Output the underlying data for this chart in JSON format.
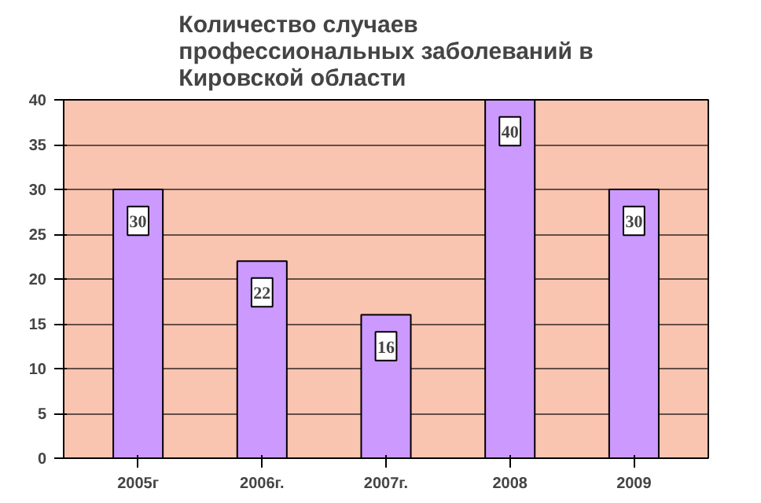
{
  "chart_data": {
    "type": "bar",
    "title": "Количество случаев\nпрофессиональных заболеваний в\nКировской области",
    "categories": [
      "2005г",
      "2006г.",
      "2007г.",
      "2008",
      "2009"
    ],
    "values": [
      30,
      22,
      16,
      40,
      30
    ],
    "color": "#cc99ff",
    "ylim": [
      0,
      40
    ],
    "yticks": [
      0,
      5,
      10,
      15,
      20,
      25,
      30,
      35,
      40
    ],
    "grid": "y",
    "data_labels": true
  }
}
